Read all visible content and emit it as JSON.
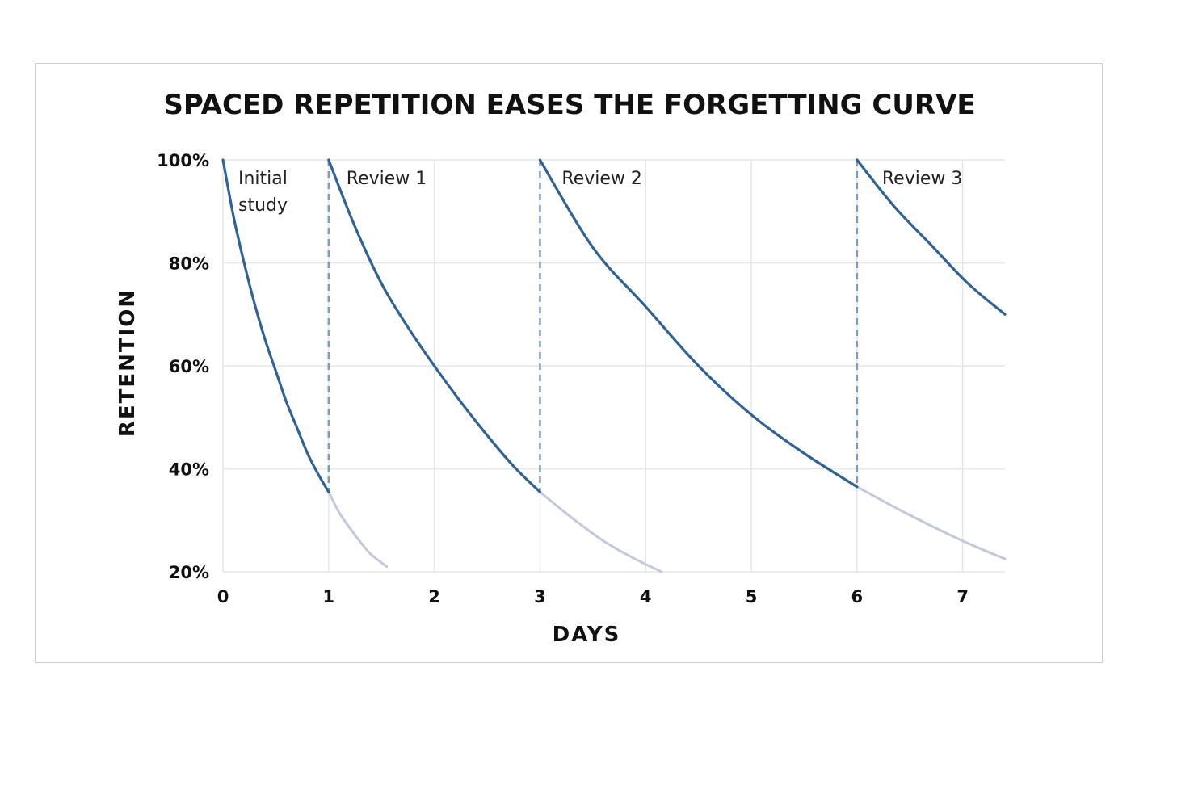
{
  "chart_data": {
    "type": "line",
    "title": "SPACED REPETITION EASES THE FORGETTING CURVE",
    "xlabel": "DAYS",
    "ylabel": "RETENTION",
    "xlim": [
      0,
      7.4
    ],
    "ylim": [
      20,
      100
    ],
    "x_ticks": [
      "0",
      "1",
      "2",
      "3",
      "4",
      "5",
      "6",
      "7"
    ],
    "y_ticks": [
      "100%",
      "80%",
      "60%",
      "40%",
      "20%"
    ],
    "y_tick_values": [
      100,
      80,
      60,
      40,
      20
    ],
    "grid": true,
    "review_days": [
      1,
      3,
      6
    ],
    "colors": {
      "active": "#2d6399",
      "faded": "#c3c8e0",
      "review_marker": "#7c9cc8",
      "grid": "#e6e6e6"
    },
    "series": [
      {
        "label": "Initial study",
        "active": {
          "x": [
            0,
            0.1,
            0.2,
            0.3,
            0.4,
            0.5,
            0.6,
            0.7,
            0.8,
            0.9,
            1.0
          ],
          "y": [
            100,
            89,
            80,
            72,
            65,
            59,
            53,
            48,
            43,
            39,
            35.5
          ]
        },
        "faded": {
          "x": [
            1.0,
            1.1,
            1.2,
            1.3,
            1.4,
            1.55
          ],
          "y": [
            35.5,
            31.5,
            28.5,
            25.8,
            23.4,
            21
          ]
        }
      },
      {
        "label": "Review 1",
        "active": {
          "x": [
            1,
            1.25,
            1.5,
            1.75,
            2,
            2.25,
            2.5,
            2.75,
            3
          ],
          "y": [
            100,
            87,
            76,
            67.5,
            60,
            53,
            46.5,
            40.5,
            35.5
          ]
        },
        "faded": {
          "x": [
            3,
            3.3,
            3.6,
            3.9,
            4.15
          ],
          "y": [
            35.5,
            30.5,
            26,
            22.5,
            20
          ]
        }
      },
      {
        "label": "Review 2",
        "active": {
          "x": [
            3,
            3.5,
            4,
            4.5,
            5,
            5.5,
            6
          ],
          "y": [
            100,
            83,
            71.5,
            60,
            50.5,
            43,
            36.5
          ]
        },
        "faded": {
          "x": [
            6,
            6.5,
            7,
            7.4
          ],
          "y": [
            36.5,
            31,
            26,
            22.5
          ]
        }
      },
      {
        "label": "Review 3",
        "active": {
          "x": [
            6,
            6.35,
            6.7,
            7.05,
            7.4
          ],
          "y": [
            100,
            91,
            83.5,
            76,
            70
          ]
        },
        "faded": {
          "x": [],
          "y": []
        }
      }
    ]
  }
}
